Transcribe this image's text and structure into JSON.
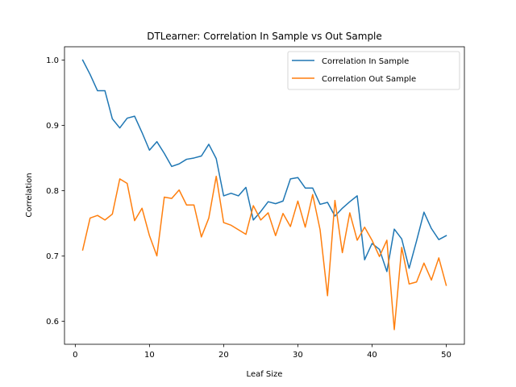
{
  "chart_data": {
    "type": "line",
    "title": "DTLearner: Correlation In Sample vs Out Sample",
    "xlabel": "Leaf Size",
    "ylabel": "Correlation",
    "xlim": [
      -1.45,
      52.45
    ],
    "ylim": [
      0.5646,
      1.0204
    ],
    "xticks": [
      0,
      10,
      20,
      30,
      40,
      50
    ],
    "yticks": [
      "0.6",
      "0.7",
      "0.8",
      "0.9",
      "1.0"
    ],
    "ytick_values": [
      0.6,
      0.7,
      0.8,
      0.9,
      1.0
    ],
    "grid": false,
    "legend_position": "top-right",
    "x": [
      1,
      2,
      3,
      4,
      5,
      6,
      7,
      8,
      9,
      10,
      11,
      12,
      13,
      14,
      15,
      16,
      17,
      18,
      19,
      20,
      21,
      22,
      23,
      24,
      25,
      26,
      27,
      28,
      29,
      30,
      31,
      32,
      33,
      34,
      35,
      36,
      37,
      38,
      39,
      40,
      41,
      42,
      43,
      44,
      45,
      46,
      47,
      48,
      49,
      50
    ],
    "series": [
      {
        "name": "Correlation In Sample",
        "color": "#1f77b4",
        "values": [
          1.0,
          0.978,
          0.953,
          0.953,
          0.91,
          0.896,
          0.911,
          0.914,
          0.889,
          0.862,
          0.875,
          0.857,
          0.837,
          0.841,
          0.848,
          0.85,
          0.853,
          0.871,
          0.849,
          0.792,
          0.796,
          0.792,
          0.805,
          0.755,
          0.768,
          0.783,
          0.78,
          0.784,
          0.818,
          0.82,
          0.804,
          0.804,
          0.779,
          0.782,
          0.761,
          0.773,
          0.783,
          0.792,
          0.694,
          0.719,
          0.71,
          0.676,
          0.741,
          0.726,
          0.681,
          0.723,
          0.767,
          0.742,
          0.725,
          0.731
        ]
      },
      {
        "name": "Correlation Out Sample",
        "color": "#ff7f0e",
        "values": [
          0.709,
          0.758,
          0.762,
          0.755,
          0.764,
          0.818,
          0.811,
          0.754,
          0.773,
          0.731,
          0.7,
          0.79,
          0.788,
          0.801,
          0.778,
          0.778,
          0.729,
          0.758,
          0.822,
          0.751,
          0.747,
          0.74,
          0.733,
          0.777,
          0.755,
          0.766,
          0.731,
          0.765,
          0.745,
          0.784,
          0.744,
          0.794,
          0.74,
          0.639,
          0.785,
          0.705,
          0.766,
          0.724,
          0.744,
          0.724,
          0.699,
          0.724,
          0.587,
          0.713,
          0.657,
          0.66,
          0.689,
          0.663,
          0.697,
          0.655
        ]
      }
    ]
  }
}
